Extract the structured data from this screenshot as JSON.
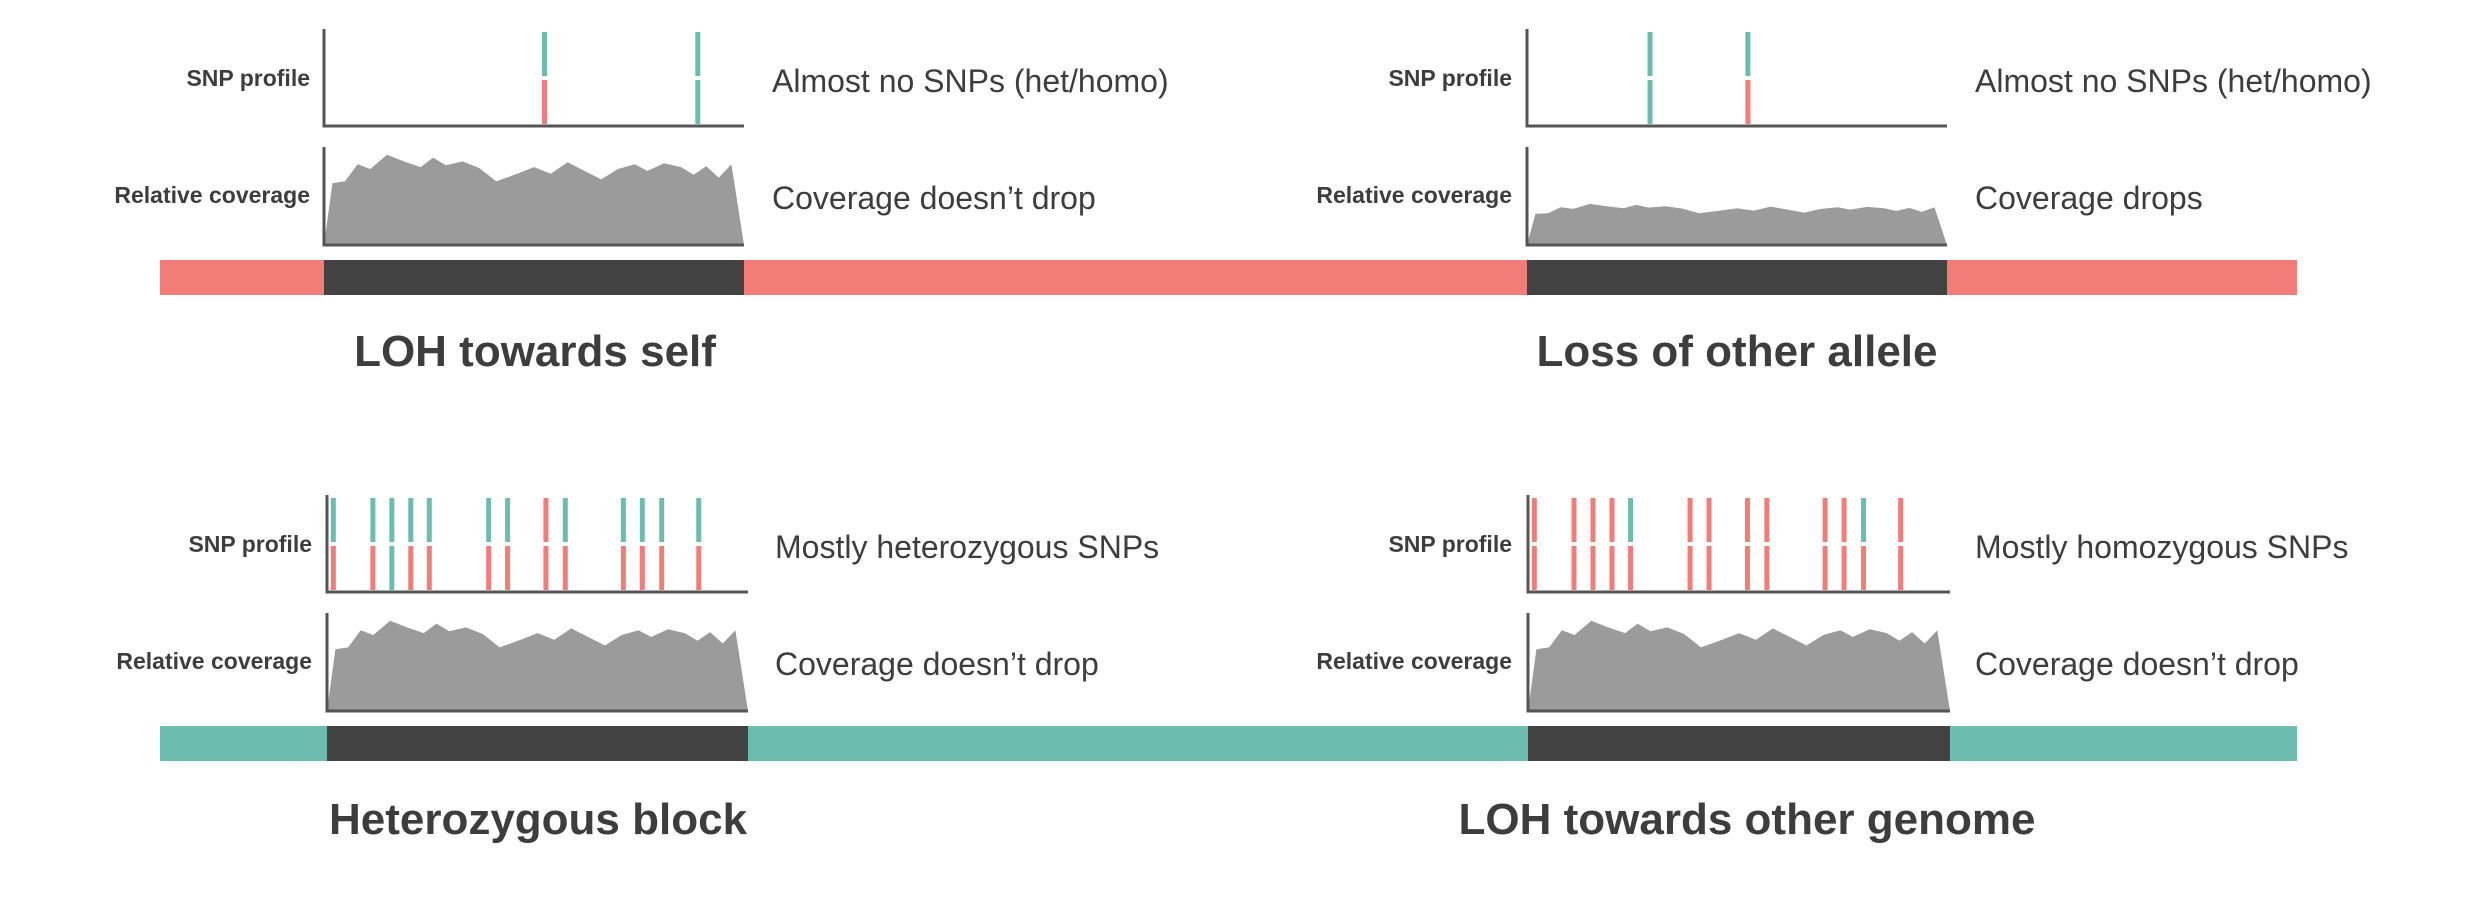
{
  "labels": {
    "snp_profile": "SNP profile",
    "relative_coverage": "Relative coverage"
  },
  "colors": {
    "heterozygous": "#6dbcb0",
    "homozygous": "#f27c77",
    "block": "#424242",
    "coverage": "#9b9b9b",
    "axis": "#555555",
    "text": "#3d3d3d"
  },
  "panels": [
    {
      "id": "loh-towards-self",
      "title": "LOH towards self",
      "snp_text": "Almost no SNPs (het/homo)",
      "coverage_text": "Coverage doesn’t drop",
      "chromosome_color": "homozygous",
      "coverage_level": "normal",
      "snps": [
        {
          "pos": 0.525,
          "top": "heterozygous",
          "bottom": "homozygous"
        },
        {
          "pos": 0.89,
          "top": "heterozygous",
          "bottom": "heterozygous"
        }
      ]
    },
    {
      "id": "loss-of-other-allele",
      "title": "Loss of other allele",
      "snp_text": "Almost no SNPs (het/homo)",
      "coverage_text": "Coverage drops",
      "chromosome_color": "homozygous",
      "coverage_level": "low",
      "snps": [
        {
          "pos": 0.293,
          "top": "heterozygous",
          "bottom": "heterozygous"
        },
        {
          "pos": 0.526,
          "top": "heterozygous",
          "bottom": "homozygous"
        }
      ]
    },
    {
      "id": "heterozygous-block",
      "title": "Heterozygous block",
      "snp_text": "Mostly heterozygous SNPs",
      "coverage_text": "Coverage doesn’t drop",
      "chromosome_color": "heterozygous",
      "coverage_level": "normal",
      "snps": [
        {
          "pos": 0.015,
          "top": "heterozygous",
          "bottom": "homozygous"
        },
        {
          "pos": 0.109,
          "top": "heterozygous",
          "bottom": "homozygous"
        },
        {
          "pos": 0.154,
          "top": "heterozygous",
          "bottom": "heterozygous"
        },
        {
          "pos": 0.199,
          "top": "heterozygous",
          "bottom": "homozygous"
        },
        {
          "pos": 0.243,
          "top": "heterozygous",
          "bottom": "homozygous"
        },
        {
          "pos": 0.384,
          "top": "heterozygous",
          "bottom": "homozygous"
        },
        {
          "pos": 0.429,
          "top": "heterozygous",
          "bottom": "homozygous"
        },
        {
          "pos": 0.52,
          "top": "homozygous",
          "bottom": "homozygous"
        },
        {
          "pos": 0.566,
          "top": "heterozygous",
          "bottom": "homozygous"
        },
        {
          "pos": 0.704,
          "top": "heterozygous",
          "bottom": "homozygous"
        },
        {
          "pos": 0.749,
          "top": "heterozygous",
          "bottom": "homozygous"
        },
        {
          "pos": 0.795,
          "top": "heterozygous",
          "bottom": "homozygous"
        },
        {
          "pos": 0.883,
          "top": "heterozygous",
          "bottom": "homozygous"
        }
      ]
    },
    {
      "id": "loh-towards-other-genome",
      "title": "LOH towards other genome",
      "snp_text": "Mostly homozygous SNPs",
      "coverage_text": "Coverage doesn’t drop",
      "chromosome_color": "heterozygous",
      "coverage_level": "normal",
      "snps": [
        {
          "pos": 0.015,
          "top": "homozygous",
          "bottom": "homozygous"
        },
        {
          "pos": 0.109,
          "top": "homozygous",
          "bottom": "homozygous"
        },
        {
          "pos": 0.154,
          "top": "homozygous",
          "bottom": "homozygous"
        },
        {
          "pos": 0.199,
          "top": "homozygous",
          "bottom": "homozygous"
        },
        {
          "pos": 0.243,
          "top": "heterozygous",
          "bottom": "homozygous"
        },
        {
          "pos": 0.384,
          "top": "homozygous",
          "bottom": "homozygous"
        },
        {
          "pos": 0.429,
          "top": "homozygous",
          "bottom": "homozygous"
        },
        {
          "pos": 0.52,
          "top": "homozygous",
          "bottom": "homozygous"
        },
        {
          "pos": 0.566,
          "top": "homozygous",
          "bottom": "homozygous"
        },
        {
          "pos": 0.704,
          "top": "homozygous",
          "bottom": "homozygous"
        },
        {
          "pos": 0.749,
          "top": "homozygous",
          "bottom": "homozygous"
        },
        {
          "pos": 0.795,
          "top": "heterozygous",
          "bottom": "homozygous"
        },
        {
          "pos": 0.883,
          "top": "homozygous",
          "bottom": "homozygous"
        }
      ]
    }
  ]
}
